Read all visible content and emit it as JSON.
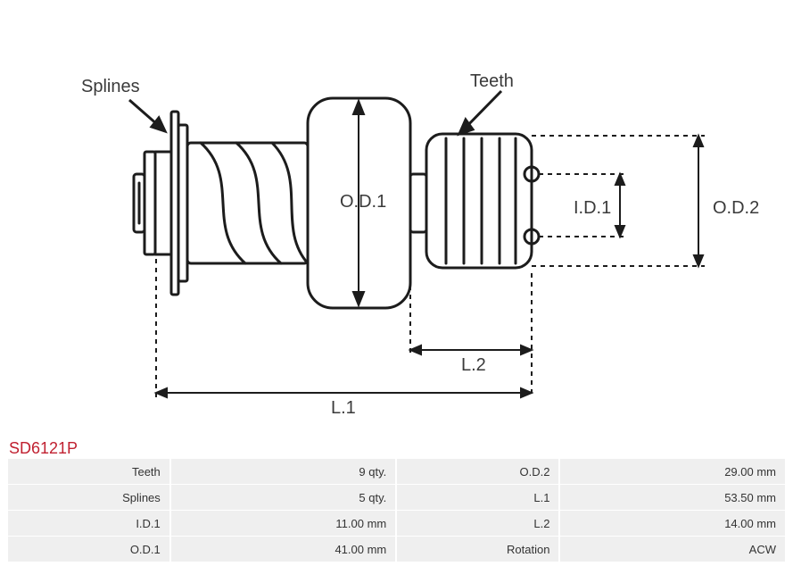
{
  "part_number": "SD6121P",
  "diagram": {
    "labels": {
      "splines": "Splines",
      "teeth": "Teeth",
      "od1": "O.D.1",
      "id1": "I.D.1",
      "od2": "O.D.2",
      "l1": "L.1",
      "l2": "L.2"
    },
    "colors": {
      "stroke": "#1c1c1c",
      "dashed": "#1c1c1c",
      "text": "#3a3a3a",
      "background": "#ffffff"
    },
    "stroke_width_main": 3,
    "stroke_width_dim": 2,
    "dash_pattern": "5 5",
    "label_fontsize": 20,
    "dimension_fontsize": 20
  },
  "specs": {
    "rows": [
      {
        "label_a": "Teeth",
        "value_a": "9 qty.",
        "label_b": "O.D.2",
        "value_b": "29.00 mm"
      },
      {
        "label_a": "Splines",
        "value_a": "5 qty.",
        "label_b": "L.1",
        "value_b": "53.50 mm"
      },
      {
        "label_a": "I.D.1",
        "value_a": "11.00 mm",
        "label_b": "L.2",
        "value_b": "14.00 mm"
      },
      {
        "label_a": "O.D.1",
        "value_a": "41.00 mm",
        "label_b": "Rotation",
        "value_b": "ACW"
      }
    ],
    "cell_bg": "#efefef",
    "label_color": "#333333",
    "font_size": 13,
    "part_number_color": "#c02030"
  }
}
